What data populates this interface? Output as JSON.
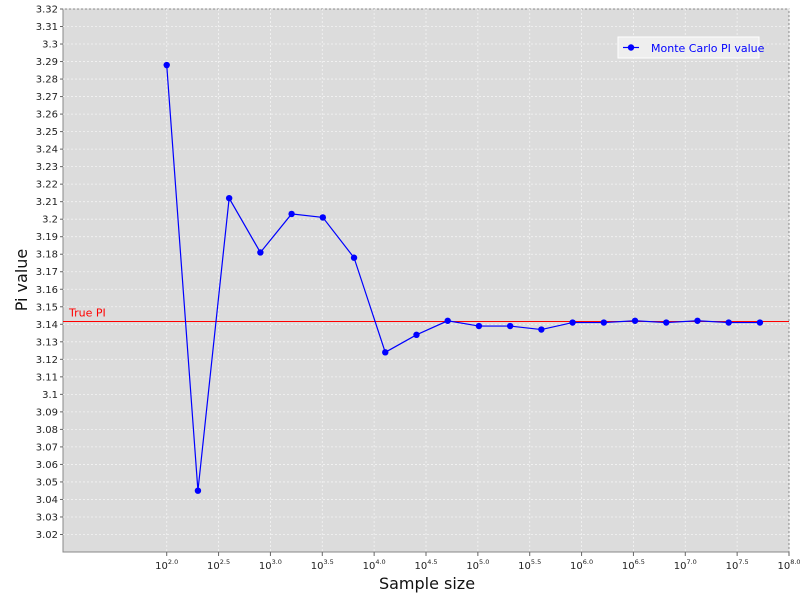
{
  "chart_data": {
    "type": "line",
    "title": "",
    "xlabel": "Sample size",
    "ylabel": "Pi value",
    "x_scale": "log10",
    "xlim": [
      10,
      100000000
    ],
    "ylim": [
      3.01,
      3.32
    ],
    "grid": true,
    "legend_position": "top-right",
    "x_ticks": [
      {
        "base": "10",
        "exp": "2.0",
        "value": 100
      },
      {
        "base": "10",
        "exp": "2.5",
        "value": 316.23
      },
      {
        "base": "10",
        "exp": "3.0",
        "value": 1000
      },
      {
        "base": "10",
        "exp": "3.5",
        "value": 3162.28
      },
      {
        "base": "10",
        "exp": "4.0",
        "value": 10000
      },
      {
        "base": "10",
        "exp": "4.5",
        "value": 31622.78
      },
      {
        "base": "10",
        "exp": "5.0",
        "value": 100000
      },
      {
        "base": "10",
        "exp": "5.5",
        "value": 316227.77
      },
      {
        "base": "10",
        "exp": "6.0",
        "value": 1000000
      },
      {
        "base": "10",
        "exp": "6.5",
        "value": 3162277.66
      },
      {
        "base": "10",
        "exp": "7.0",
        "value": 10000000
      },
      {
        "base": "10",
        "exp": "7.5",
        "value": 31622776.6
      },
      {
        "base": "10",
        "exp": "8.0",
        "value": 100000000
      }
    ],
    "y_ticks": [
      "3.02",
      "3.03",
      "3.04",
      "3.05",
      "3.06",
      "3.07",
      "3.08",
      "3.09",
      "3.1",
      "3.11",
      "3.12",
      "3.13",
      "3.14",
      "3.15",
      "3.16",
      "3.17",
      "3.18",
      "3.19",
      "3.2",
      "3.21",
      "3.22",
      "3.23",
      "3.24",
      "3.25",
      "3.26",
      "3.27",
      "3.28",
      "3.29",
      "3.3",
      "3.31",
      "3.32"
    ],
    "series": [
      {
        "name": "Monte Carlo PI value",
        "color": "#0000ff",
        "marker": "circle",
        "points": [
          {
            "x": 100,
            "y": 3.288
          },
          {
            "x": 200,
            "y": 3.045
          },
          {
            "x": 400,
            "y": 3.212
          },
          {
            "x": 800,
            "y": 3.181
          },
          {
            "x": 1600,
            "y": 3.203
          },
          {
            "x": 3200,
            "y": 3.201
          },
          {
            "x": 6400,
            "y": 3.178
          },
          {
            "x": 12800,
            "y": 3.124
          },
          {
            "x": 25600,
            "y": 3.134
          },
          {
            "x": 51200,
            "y": 3.142
          },
          {
            "x": 102400,
            "y": 3.139
          },
          {
            "x": 204800,
            "y": 3.139
          },
          {
            "x": 409600,
            "y": 3.137
          },
          {
            "x": 819200,
            "y": 3.141
          },
          {
            "x": 1638400,
            "y": 3.141
          },
          {
            "x": 3276800,
            "y": 3.142
          },
          {
            "x": 6553600,
            "y": 3.141
          },
          {
            "x": 13107200,
            "y": 3.142
          },
          {
            "x": 26214400,
            "y": 3.141
          },
          {
            "x": 52428800,
            "y": 3.141
          }
        ]
      }
    ],
    "reference_lines": [
      {
        "label": "True PI",
        "y": 3.14159,
        "color": "#ff0000"
      }
    ],
    "colors": {
      "plot_background": "#dcdcdc",
      "gridline": "#f4f4f4",
      "series": "#0000ff",
      "reference": "#ff0000"
    }
  }
}
